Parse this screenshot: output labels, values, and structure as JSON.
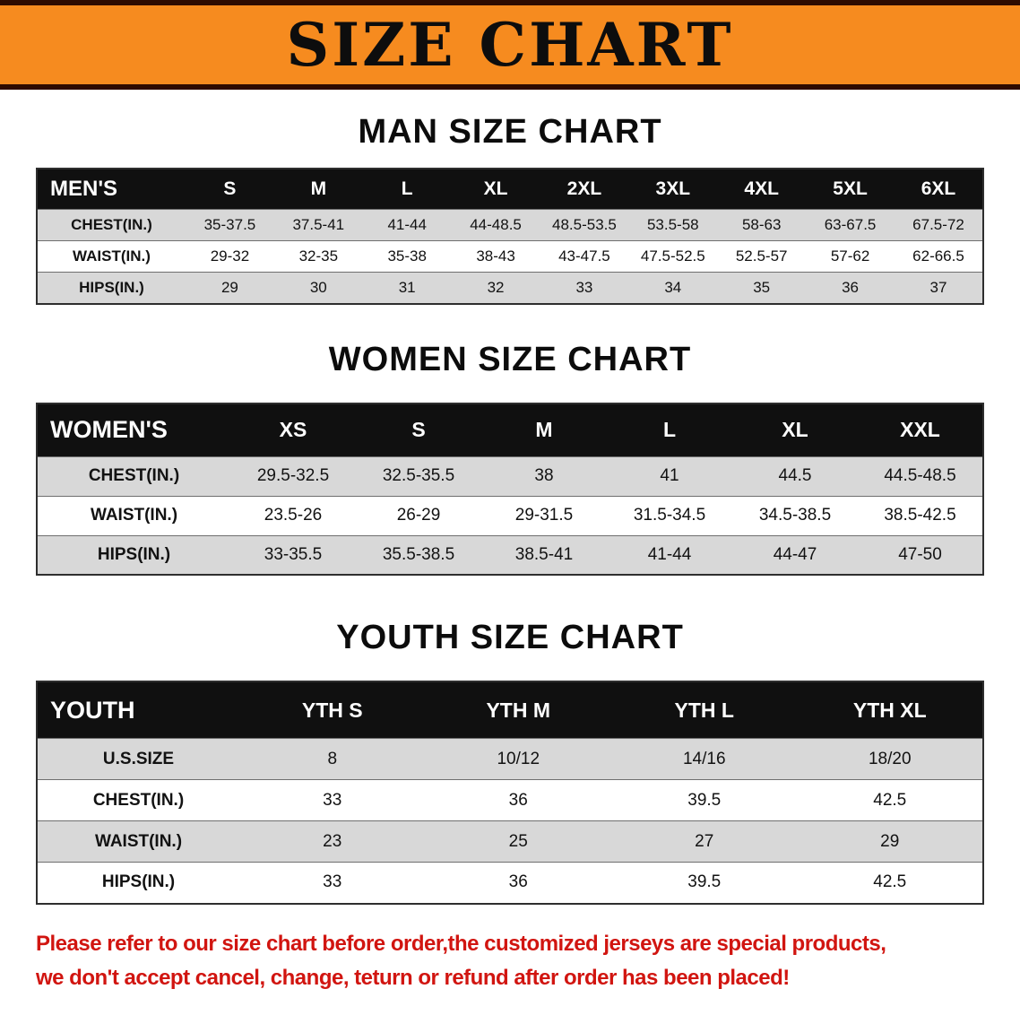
{
  "banner": {
    "title": "SIZE CHART",
    "bg_color": "#f68b1f",
    "border_color": "#2e0b00",
    "text_color": "#0d0d0d"
  },
  "sections": [
    {
      "heading": "MAN SIZE CHART",
      "table": {
        "name": "mens",
        "header": [
          "MEN'S",
          "S",
          "M",
          "L",
          "XL",
          "2XL",
          "3XL",
          "4XL",
          "5XL",
          "6XL"
        ],
        "rows": [
          {
            "label": "CHEST(IN.)",
            "values": [
              "35-37.5",
              "37.5-41",
              "41-44",
              "44-48.5",
              "48.5-53.5",
              "53.5-58",
              "58-63",
              "63-67.5",
              "67.5-72"
            ]
          },
          {
            "label": "WAIST(IN.)",
            "values": [
              "29-32",
              "32-35",
              "35-38",
              "38-43",
              "43-47.5",
              "47.5-52.5",
              "52.5-57",
              "57-62",
              "62-66.5"
            ]
          },
          {
            "label": "HIPS(IN.)",
            "values": [
              "29",
              "30",
              "31",
              "32",
              "33",
              "34",
              "35",
              "36",
              "37"
            ]
          }
        ]
      }
    },
    {
      "heading": "WOMEN SIZE CHART",
      "table": {
        "name": "womens",
        "header": [
          "WOMEN'S",
          "XS",
          "S",
          "M",
          "L",
          "XL",
          "XXL"
        ],
        "rows": [
          {
            "label": "CHEST(IN.)",
            "values": [
              "29.5-32.5",
              "32.5-35.5",
              "38",
              "41",
              "44.5",
              "44.5-48.5"
            ]
          },
          {
            "label": "WAIST(IN.)",
            "values": [
              "23.5-26",
              "26-29",
              "29-31.5",
              "31.5-34.5",
              "34.5-38.5",
              "38.5-42.5"
            ]
          },
          {
            "label": "HIPS(IN.)",
            "values": [
              "33-35.5",
              "35.5-38.5",
              "38.5-41",
              "41-44",
              "44-47",
              "47-50"
            ]
          }
        ]
      }
    },
    {
      "heading": "YOUTH SIZE CHART",
      "table": {
        "name": "youth",
        "header": [
          "YOUTH",
          "YTH S",
          "YTH M",
          "YTH L",
          "YTH XL"
        ],
        "rows": [
          {
            "label": "U.S.SIZE",
            "values": [
              "8",
              "10/12",
              "14/16",
              "18/20"
            ]
          },
          {
            "label": "CHEST(IN.)",
            "values": [
              "33",
              "36",
              "39.5",
              "42.5"
            ]
          },
          {
            "label": "WAIST(IN.)",
            "values": [
              "23",
              "25",
              "27",
              "29"
            ]
          },
          {
            "label": "HIPS(IN.)",
            "values": [
              "33",
              "36",
              "39.5",
              "42.5"
            ]
          }
        ]
      }
    }
  ],
  "footer": {
    "line1": "Please refer to our size chart before order,the customized jerseys are special products,",
    "line2": "we don't accept cancel, change, teturn or refund after order has been placed!",
    "text_color": "#d11510"
  }
}
